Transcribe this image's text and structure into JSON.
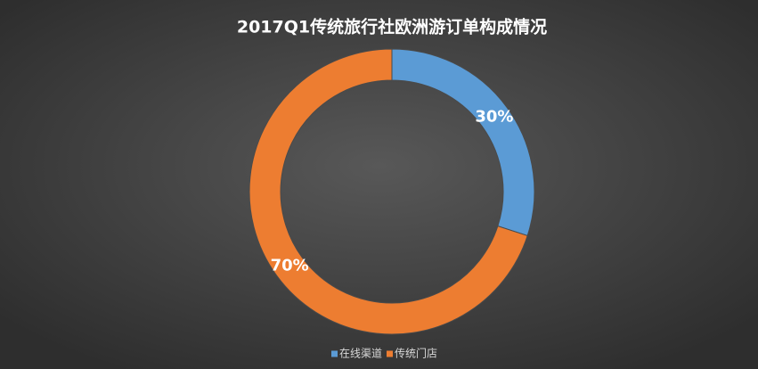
{
  "chart_data": {
    "type": "donut",
    "title": "2017Q1传统旅行社欧洲游订单构成情况",
    "categories": [
      "在线渠道",
      "传统门店"
    ],
    "values": [
      30,
      70
    ],
    "value_labels": [
      "30%",
      "70%"
    ],
    "colors": [
      "#5b9bd5",
      "#ed7d31"
    ],
    "legend": "bottom"
  }
}
